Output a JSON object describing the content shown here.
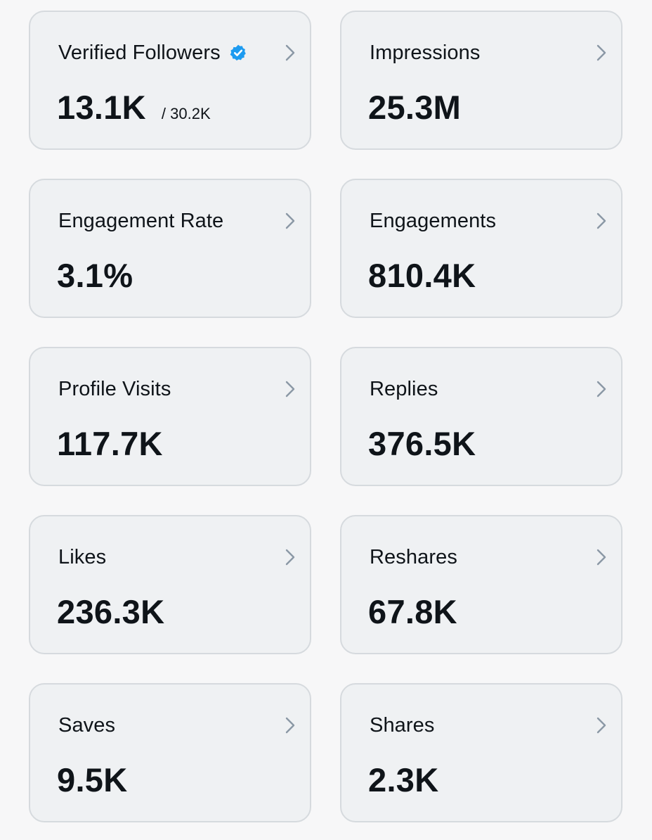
{
  "colors": {
    "page_background": "#f7f7f8",
    "card_background": "#eff1f3",
    "card_border": "#d6dade",
    "text": "#0f1419",
    "chevron": "#8b98a5",
    "verified_badge": "#1d9bf0"
  },
  "metrics": [
    {
      "title": "Verified Followers",
      "value": "13.1K",
      "sub": "/ 30.2K",
      "icon": "verified-badge-icon",
      "chevron_icon": "chevron-right-icon"
    },
    {
      "title": "Impressions",
      "value": "25.3M",
      "chevron_icon": "chevron-right-icon"
    },
    {
      "title": "Engagement Rate",
      "value": "3.1%",
      "chevron_icon": "chevron-right-icon"
    },
    {
      "title": "Engagements",
      "value": "810.4K",
      "chevron_icon": "chevron-right-icon"
    },
    {
      "title": "Profile Visits",
      "value": "117.7K",
      "chevron_icon": "chevron-right-icon"
    },
    {
      "title": "Replies",
      "value": "376.5K",
      "chevron_icon": "chevron-right-icon"
    },
    {
      "title": "Likes",
      "value": "236.3K",
      "chevron_icon": "chevron-right-icon"
    },
    {
      "title": "Reshares",
      "value": "67.8K",
      "chevron_icon": "chevron-right-icon"
    },
    {
      "title": "Saves",
      "value": "9.5K",
      "chevron_icon": "chevron-right-icon"
    },
    {
      "title": "Shares",
      "value": "2.3K",
      "chevron_icon": "chevron-right-icon"
    }
  ]
}
